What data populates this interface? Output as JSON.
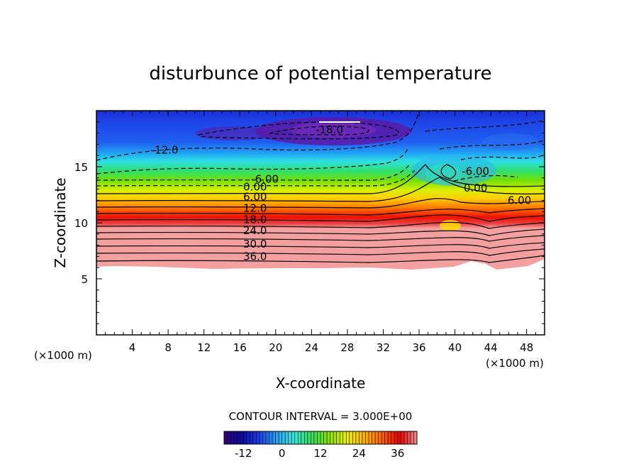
{
  "chart_data": {
    "type": "contour",
    "title": "disturbunce of potential temperature",
    "xlabel": "X-coordinate",
    "ylabel": "Z-coordinate",
    "x_unit_label": "(×1000 m)",
    "x_unit_label_right": "(×1000 m)",
    "xlim": [
      0,
      50
    ],
    "ylim": [
      0,
      20
    ],
    "x_ticks": [
      "4",
      "8",
      "12",
      "16",
      "20",
      "24",
      "28",
      "32",
      "36",
      "40",
      "44",
      "48"
    ],
    "y_ticks": [
      "5",
      "10",
      "15"
    ],
    "contour_interval_text": "CONTOUR INTERVAL = 3.000E+00",
    "colorbar": {
      "range": [
        -18,
        42
      ],
      "tick_labels": [
        "-12",
        "0",
        "12",
        "24",
        "36"
      ],
      "colors": [
        "#3a0080",
        "#0a0aa0",
        "#1e3ce6",
        "#2aa0f0",
        "#3ae6dc",
        "#30e060",
        "#8fe000",
        "#f0f000",
        "#ffb000",
        "#ff6000",
        "#e80000",
        "#f09090"
      ]
    },
    "contour_labels": [
      {
        "text": "-18.0",
        "x": 26,
        "z": 18.3
      },
      {
        "text": "-12.0",
        "x": 7.6,
        "z": 16.5
      },
      {
        "text": "-6.00",
        "x": 18.8,
        "z": 13.9
      },
      {
        "text": "0.00",
        "x": 17.7,
        "z": 13.2
      },
      {
        "text": "6.00",
        "x": 17.7,
        "z": 12.3
      },
      {
        "text": "12.0",
        "x": 17.7,
        "z": 11.3
      },
      {
        "text": "18.0",
        "x": 17.7,
        "z": 10.3
      },
      {
        "text": "24.0",
        "x": 17.7,
        "z": 9.3
      },
      {
        "text": "30.0",
        "x": 17.7,
        "z": 8.1
      },
      {
        "text": "36.0",
        "x": 17.7,
        "z": 7.0
      },
      {
        "text": "-6.00",
        "x": 42.3,
        "z": 14.6
      },
      {
        "text": "0.00",
        "x": 42.3,
        "z": 13.1
      },
      {
        "text": "6.00",
        "x": 47.2,
        "z": 12.0
      }
    ]
  }
}
